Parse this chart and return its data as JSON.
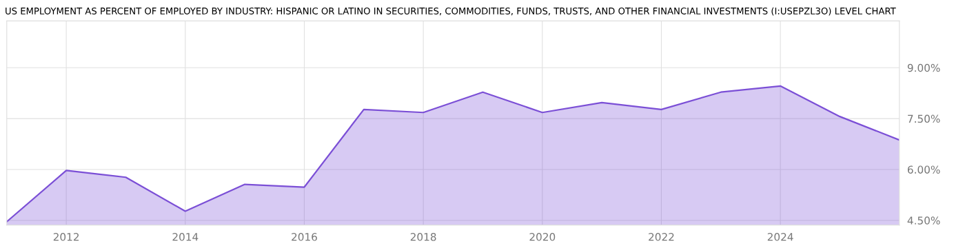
{
  "chart_data": {
    "type": "area",
    "title": "US EMPLOYMENT AS PERCENT OF EMPLOYED BY INDUSTRY: HISPANIC OR LATINO IN SECURITIES, COMMODITIES, FUNDS, TRUSTS, AND OTHER FINANCIAL INVESTMENTS (I:USEPZL3O) LEVEL CHART",
    "x": [
      2011,
      2012,
      2013,
      2014,
      2015,
      2016,
      2017,
      2018,
      2019,
      2020,
      2021,
      2022,
      2023,
      2024,
      2025,
      2026
    ],
    "series": [
      {
        "color": "#7b4fd6",
        "values": [
          4.46,
          5.97,
          5.77,
          4.77,
          5.56,
          5.48,
          7.77,
          7.68,
          8.28,
          7.68,
          7.97,
          7.77,
          8.28,
          8.46,
          7.56,
          6.87
        ]
      }
    ],
    "xlim": [
      2011,
      2026
    ],
    "xticks": [
      2012,
      2014,
      2016,
      2018,
      2020,
      2022,
      2024
    ],
    "ylim": [
      4.36,
      10.38
    ],
    "yticks": [
      {
        "value": 4.5,
        "label": "4.50%"
      },
      {
        "value": 6,
        "label": "6.00%"
      },
      {
        "value": 7.5,
        "label": "7.50%"
      },
      {
        "value": 9,
        "label": "9.00%"
      }
    ],
    "grid": true
  }
}
